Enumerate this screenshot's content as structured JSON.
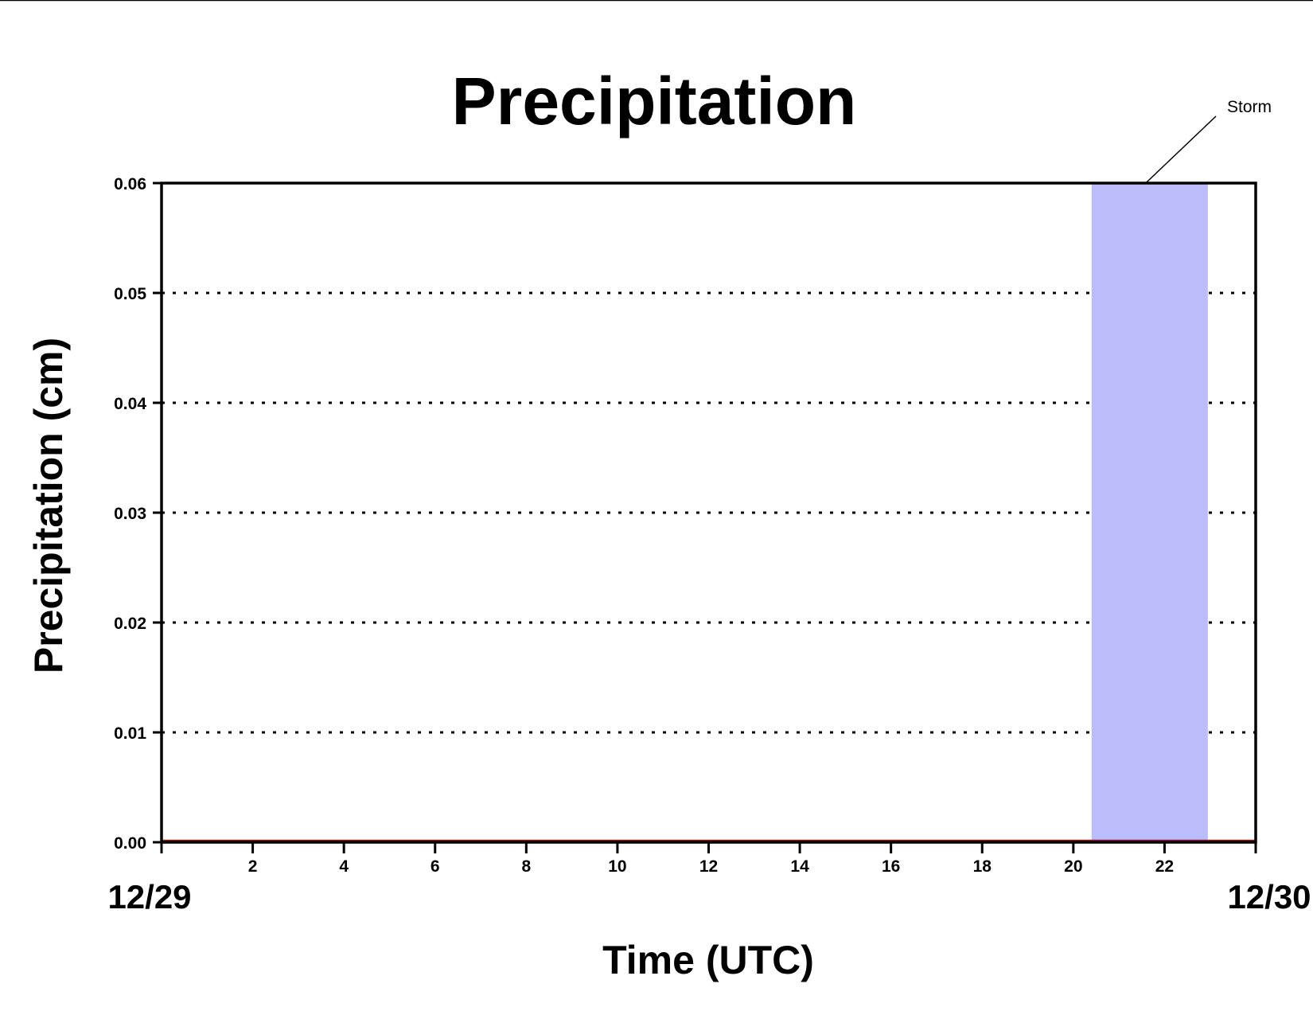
{
  "chart_data": {
    "type": "line",
    "title": "Precipitation",
    "xlabel": "Time (UTC)",
    "ylabel": "Precipitation (cm)",
    "xlim": [
      0,
      24
    ],
    "ylim": [
      0,
      0.06
    ],
    "x_ticks": [
      2,
      4,
      6,
      8,
      10,
      12,
      14,
      16,
      18,
      20,
      22
    ],
    "y_ticks": [
      "0.00",
      "0.01",
      "0.02",
      "0.03",
      "0.04",
      "0.05",
      "0.06"
    ],
    "date_labels": {
      "start": "12/29",
      "end": "12/30"
    },
    "grid": "horizontal dotted",
    "series": [
      {
        "x": [
          0,
          24
        ],
        "values": [
          0,
          0
        ],
        "color": "#cc0000"
      }
    ],
    "shaded_region": {
      "x_start": 20.4,
      "x_end": 22.95,
      "label": "Storm",
      "color": "#bdbcfb"
    }
  }
}
